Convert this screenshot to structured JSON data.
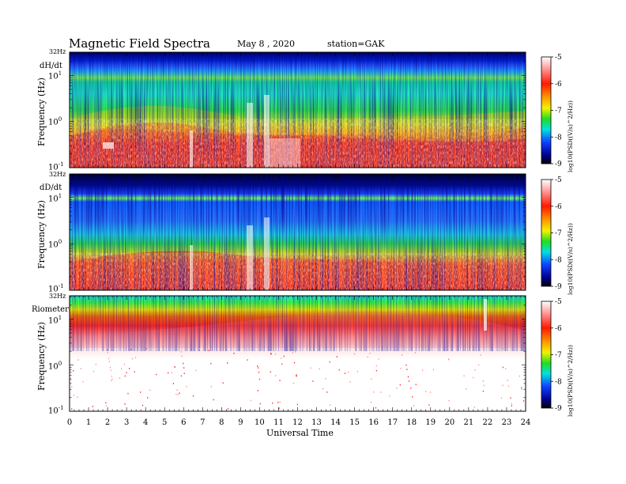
{
  "header": {
    "title": "Magnetic Field Spectra",
    "date": "May 8 , 2020",
    "station": "station=GAK"
  },
  "chart_data": [
    {
      "type": "heatmap",
      "panel_label": "dH/dt",
      "top_label": "32Hz",
      "ylabel": "Frequency (Hz)",
      "yscale": "log",
      "ylim": [
        0.1,
        32
      ],
      "y_ticks": [
        {
          "value": 0.1,
          "base": "10",
          "exp": "-1"
        },
        {
          "value": 1,
          "base": "10",
          "exp": "0"
        },
        {
          "value": 10,
          "base": "10",
          "exp": "1"
        }
      ],
      "xlim": [
        0,
        24
      ],
      "colorbar": {
        "label": "log10(PSD((V/s)^2/Hz))",
        "ticks": [
          "-5",
          "-6",
          "-7",
          "-8",
          "-9"
        ]
      }
    },
    {
      "type": "heatmap",
      "panel_label": "dD/dt",
      "top_label": "32Hz",
      "ylabel": "Frequency (Hz)",
      "yscale": "log",
      "ylim": [
        0.1,
        32
      ],
      "y_ticks": [
        {
          "value": 0.1,
          "base": "10",
          "exp": "-1"
        },
        {
          "value": 1,
          "base": "10",
          "exp": "0"
        },
        {
          "value": 10,
          "base": "10",
          "exp": "1"
        }
      ],
      "xlim": [
        0,
        24
      ],
      "colorbar": {
        "label": "log10(PSD((V/s)^2/Hz))",
        "ticks": [
          "-5",
          "-6",
          "-7",
          "-8",
          "-9"
        ]
      }
    },
    {
      "type": "heatmap",
      "panel_label": "Riometer",
      "top_label": "32Hz",
      "ylabel": "Frequency (Hz)",
      "yscale": "log",
      "ylim": [
        0.1,
        32
      ],
      "y_ticks": [
        {
          "value": 0.1,
          "base": "10",
          "exp": "-1"
        },
        {
          "value": 1,
          "base": "10",
          "exp": "0"
        },
        {
          "value": 10,
          "base": "10",
          "exp": "1"
        }
      ],
      "xlim": [
        0,
        24
      ],
      "colorbar": {
        "label": "log10(PSD((V/s)^2/Hz))",
        "ticks": [
          "-5",
          "-6",
          "-7",
          "-8",
          "-9"
        ]
      }
    }
  ],
  "x_axis": {
    "label": "Universal Time",
    "ticks": [
      "0",
      "1",
      "2",
      "3",
      "4",
      "5",
      "6",
      "7",
      "8",
      "9",
      "10",
      "11",
      "12",
      "13",
      "14",
      "15",
      "16",
      "17",
      "18",
      "19",
      "20",
      "21",
      "22",
      "23",
      "24"
    ]
  }
}
